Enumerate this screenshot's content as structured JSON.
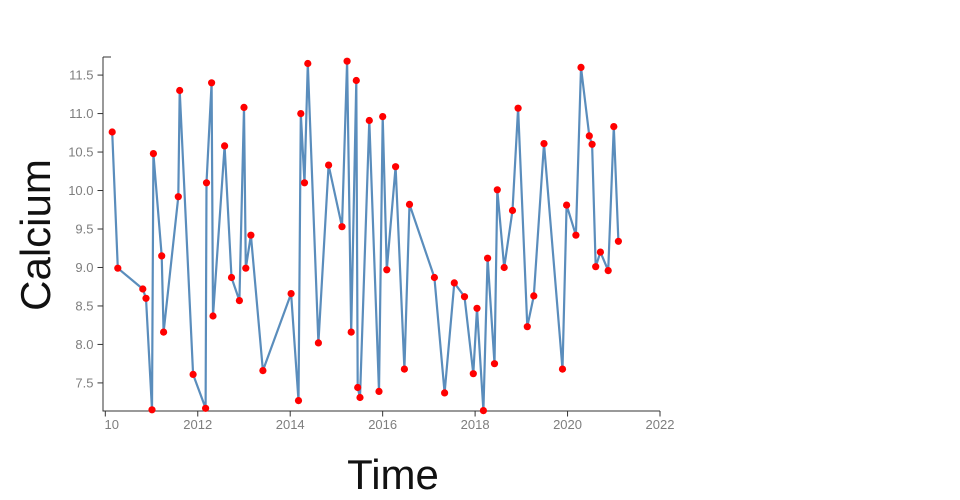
{
  "chart_data": {
    "type": "line",
    "title": "",
    "xlabel": "Time",
    "ylabel": "Calcium",
    "grid": false,
    "legend": null,
    "xlim": [
      2009.95,
      2022
    ],
    "ylim": [
      7.135,
      11.735
    ],
    "x_ticks": {
      "values": [
        2010,
        2012,
        2014,
        2016,
        2018,
        2020,
        2022
      ],
      "labels": [
        "10",
        "2012",
        "2014",
        "2016",
        "2018",
        "2020",
        "2022"
      ]
    },
    "y_ticks": {
      "values": [
        7.5,
        8.0,
        8.5,
        9.0,
        9.5,
        10.0,
        10.5,
        11.0,
        11.5
      ],
      "labels": [
        "7.5",
        "8.0",
        "8.5",
        "9.0",
        "9.5",
        "10.0",
        "10.5",
        "11.0",
        "11.5"
      ]
    },
    "line_color": "#4c83b6",
    "marker_color": "#ff0000",
    "axis_color": "#333333",
    "tick_label_color": "#7e7e7e",
    "axis_title_color": "#111111",
    "points": [
      [
        2010.15,
        10.76
      ],
      [
        2010.27,
        8.99
      ],
      [
        2010.81,
        8.72
      ],
      [
        2010.88,
        8.6
      ],
      [
        2011.01,
        7.15
      ],
      [
        2011.04,
        10.48
      ],
      [
        2011.22,
        9.15
      ],
      [
        2011.26,
        8.16
      ],
      [
        2011.58,
        9.92
      ],
      [
        2011.61,
        11.3
      ],
      [
        2011.9,
        7.61
      ],
      [
        2012.17,
        7.17
      ],
      [
        2012.19,
        10.1
      ],
      [
        2012.3,
        11.4
      ],
      [
        2012.33,
        8.37
      ],
      [
        2012.58,
        10.58
      ],
      [
        2012.73,
        8.87
      ],
      [
        2012.9,
        8.57
      ],
      [
        2013.0,
        11.08
      ],
      [
        2013.04,
        8.99
      ],
      [
        2013.15,
        9.42
      ],
      [
        2013.41,
        7.66
      ],
      [
        2014.02,
        8.66
      ],
      [
        2014.18,
        7.27
      ],
      [
        2014.23,
        11.0
      ],
      [
        2014.31,
        10.1
      ],
      [
        2014.38,
        11.65
      ],
      [
        2014.61,
        8.02
      ],
      [
        2014.83,
        10.33
      ],
      [
        2015.12,
        9.53
      ],
      [
        2015.23,
        11.68
      ],
      [
        2015.32,
        8.16
      ],
      [
        2015.43,
        11.43
      ],
      [
        2015.46,
        7.44
      ],
      [
        2015.51,
        7.31
      ],
      [
        2015.71,
        10.91
      ],
      [
        2015.92,
        7.39
      ],
      [
        2016.0,
        10.96
      ],
      [
        2016.09,
        8.97
      ],
      [
        2016.28,
        10.31
      ],
      [
        2016.47,
        7.68
      ],
      [
        2016.58,
        9.82
      ],
      [
        2017.12,
        8.87
      ],
      [
        2017.34,
        7.37
      ],
      [
        2017.55,
        8.8
      ],
      [
        2017.77,
        8.62
      ],
      [
        2017.96,
        7.62
      ],
      [
        2018.04,
        8.47
      ],
      [
        2018.18,
        7.14
      ],
      [
        2018.27,
        9.12
      ],
      [
        2018.42,
        7.75
      ],
      [
        2018.48,
        10.01
      ],
      [
        2018.63,
        9.0
      ],
      [
        2018.81,
        9.74
      ],
      [
        2018.93,
        11.07
      ],
      [
        2019.13,
        8.23
      ],
      [
        2019.27,
        8.63
      ],
      [
        2019.49,
        10.61
      ],
      [
        2019.89,
        7.68
      ],
      [
        2019.98,
        9.81
      ],
      [
        2020.18,
        9.42
      ],
      [
        2020.29,
        11.6
      ],
      [
        2020.47,
        10.71
      ],
      [
        2020.53,
        10.6
      ],
      [
        2020.61,
        9.01
      ],
      [
        2020.71,
        9.2
      ],
      [
        2020.88,
        8.96
      ],
      [
        2021.0,
        10.83
      ],
      [
        2021.1,
        9.34
      ]
    ]
  }
}
